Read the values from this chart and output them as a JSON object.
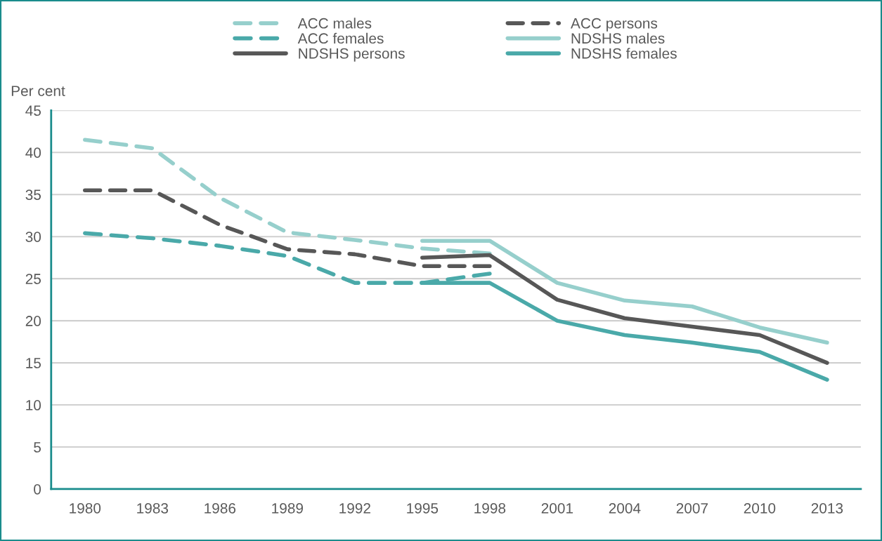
{
  "chart_data": {
    "type": "line",
    "ylabel": "Per cent",
    "categories": [
      "1980",
      "1983",
      "1986",
      "1989",
      "1992",
      "1995",
      "1998",
      "2001",
      "2004",
      "2007",
      "2010",
      "2013"
    ],
    "ylim": [
      0,
      45
    ],
    "yticks": [
      0,
      5,
      10,
      15,
      20,
      25,
      30,
      35,
      40,
      45
    ],
    "grid": "y",
    "legend": "top",
    "marker": "none",
    "series": [
      {
        "name": "ACC males",
        "color": "#96cfcc",
        "line_style": "dashed",
        "values": [
          41.5,
          40.5,
          34.6,
          30.5,
          29.6,
          28.6,
          28.0,
          null,
          null,
          null,
          null,
          null
        ]
      },
      {
        "name": "ACC persons",
        "color": "#575757",
        "line_style": "dashed",
        "values": [
          35.5,
          35.5,
          31.4,
          28.5,
          27.9,
          26.5,
          26.5,
          null,
          null,
          null,
          null,
          null
        ]
      },
      {
        "name": "ACC females",
        "color": "#4aa9a9",
        "line_style": "dashed",
        "values": [
          30.4,
          29.8,
          28.9,
          27.7,
          24.5,
          24.5,
          25.6,
          null,
          null,
          null,
          null,
          null
        ]
      },
      {
        "name": "NDSHS males",
        "color": "#96cfcc",
        "line_style": "solid",
        "values": [
          null,
          null,
          null,
          null,
          null,
          29.5,
          29.5,
          24.5,
          22.4,
          21.7,
          19.2,
          17.4
        ]
      },
      {
        "name": "NDSHS persons",
        "color": "#575757",
        "line_style": "solid",
        "values": [
          null,
          null,
          null,
          null,
          null,
          27.5,
          27.8,
          22.5,
          20.3,
          19.3,
          18.3,
          15.0
        ]
      },
      {
        "name": "NDSHS females",
        "color": "#4aa9a9",
        "line_style": "solid",
        "values": [
          null,
          null,
          null,
          null,
          null,
          24.5,
          24.5,
          20.0,
          18.3,
          17.4,
          16.3,
          13.0
        ]
      }
    ]
  }
}
